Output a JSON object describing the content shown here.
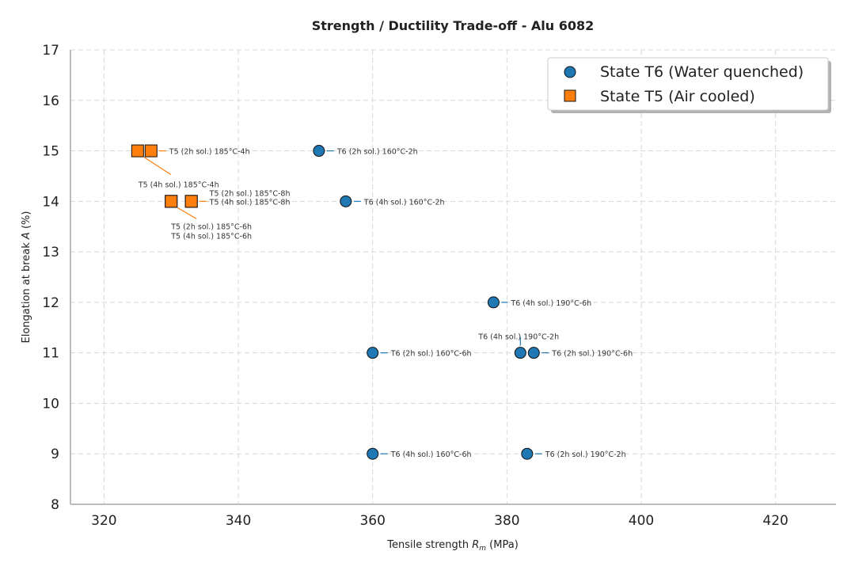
{
  "chart_data": {
    "type": "scatter",
    "title": "Strength / Ductility Trade-off - Alu 6082",
    "xlabel": "Tensile strength R_m (MPa)",
    "xlabel_parts": {
      "pre": "Tensile strength ",
      "sym": "R",
      "sub": "m",
      "post": " (MPa)"
    },
    "ylabel": "Elongation at break A (%)",
    "ylabel_parts": {
      "pre": "Elongation at break ",
      "sym": "A",
      "post": " (%)"
    },
    "xlim": [
      315,
      429
    ],
    "ylim": [
      8,
      17
    ],
    "xticks": [
      320,
      340,
      360,
      380,
      400,
      420
    ],
    "yticks": [
      8,
      9,
      10,
      11,
      12,
      13,
      14,
      15,
      16,
      17
    ],
    "grid": true,
    "legend_position": "top-right",
    "series": [
      {
        "name": "State T6 (Water quenched)",
        "marker": "circle",
        "color": "#1f77b4",
        "points": [
          {
            "x": 352,
            "y": 15,
            "label": "T6 (2h sol.) 160°C-2h"
          },
          {
            "x": 356,
            "y": 14,
            "label": "T6 (4h sol.) 160°C-2h"
          },
          {
            "x": 378,
            "y": 12,
            "label": "T6 (4h sol.) 190°C-6h"
          },
          {
            "x": 360,
            "y": 11,
            "label": "T6 (2h sol.) 160°C-6h"
          },
          {
            "x": 382,
            "y": 11,
            "label": "T6 (4h sol.) 190°C-2h"
          },
          {
            "x": 384,
            "y": 11,
            "label": "T6 (2h sol.) 190°C-6h"
          },
          {
            "x": 360,
            "y": 9,
            "label": "T6 (4h sol.) 160°C-6h"
          },
          {
            "x": 383,
            "y": 9,
            "label": "T6 (2h sol.) 190°C-2h"
          }
        ]
      },
      {
        "name": "State T5 (Air cooled)",
        "marker": "square",
        "color": "#ff7f0e",
        "points": [
          {
            "x": 325,
            "y": 15,
            "label": "T5 (4h sol.) 185°C-4h"
          },
          {
            "x": 327,
            "y": 15,
            "label": "T5 (2h sol.) 185°C-4h"
          },
          {
            "x": 333,
            "y": 14,
            "label": "T5 (2h sol.) 185°C-8h"
          },
          {
            "x": 333,
            "y": 14,
            "label": "T5 (4h sol.) 185°C-8h"
          },
          {
            "x": 330,
            "y": 14,
            "label": "T5 (2h sol.) 185°C-6h"
          },
          {
            "x": 330,
            "y": 14,
            "label": "T5 (4h sol.) 185°C-6h"
          }
        ]
      }
    ]
  }
}
